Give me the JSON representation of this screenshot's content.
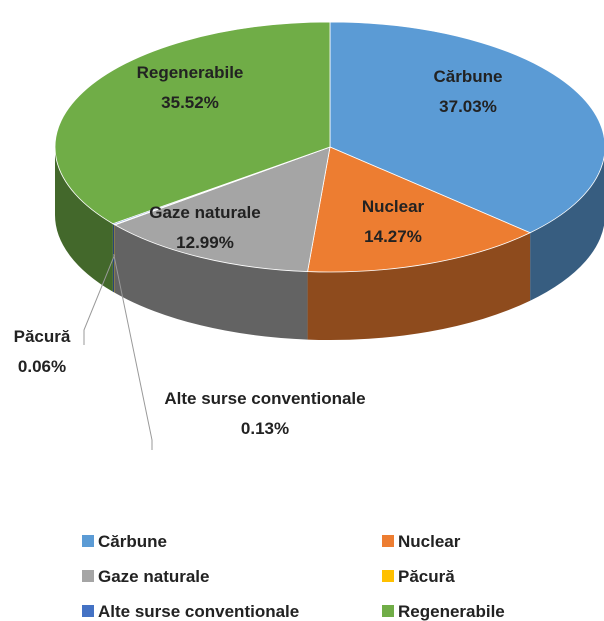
{
  "chart_data": {
    "type": "pie3d",
    "categories": [
      "Cărbune",
      "Nuclear",
      "Gaze naturale",
      "Păcură",
      "Alte surse conventionale",
      "Regenerabile"
    ],
    "values": [
      37.03,
      14.27,
      12.99,
      0.06,
      0.13,
      35.52
    ],
    "value_labels": [
      "37.03%",
      "14.27%",
      "12.99%",
      "0.06%",
      "0.13%",
      "35.52%"
    ],
    "colors": [
      "#5b9bd5",
      "#ed7d31",
      "#a5a5a5",
      "#ffc000",
      "#4472c4",
      "#70ad47"
    ],
    "legend": "bottom"
  }
}
